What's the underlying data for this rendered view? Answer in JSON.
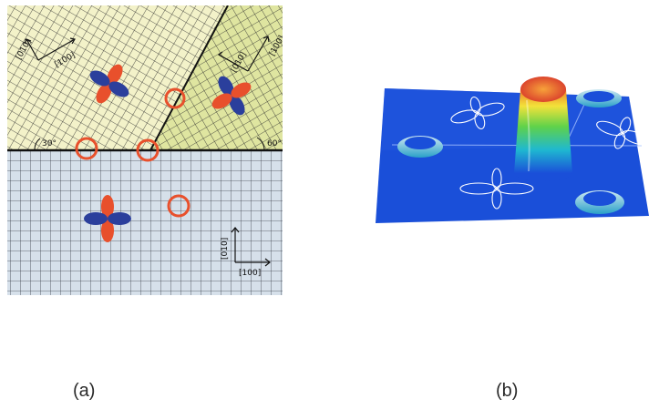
{
  "panels": {
    "a": {
      "label": "(a)"
    },
    "b": {
      "label": "(b)"
    }
  },
  "grain_left": {
    "axes": [
      "[010]",
      "[100]"
    ],
    "angle": "30°"
  },
  "grain_right": {
    "axes": [
      "[010]",
      "[100]"
    ],
    "angle": "60°"
  },
  "grain_bottom": {
    "axes": [
      "[010]",
      "[100]"
    ]
  },
  "colors": {
    "lobe_positive": "#e8502c",
    "lobe_negative": "#2b3f9c",
    "marker_ring": "#e8502c",
    "grain_left_fill": "#f3f2c9",
    "grain_right_fill": "#dfe5a0",
    "grain_bottom_fill": "#d6e0ea",
    "surface_blue": "#1a4fd9"
  }
}
